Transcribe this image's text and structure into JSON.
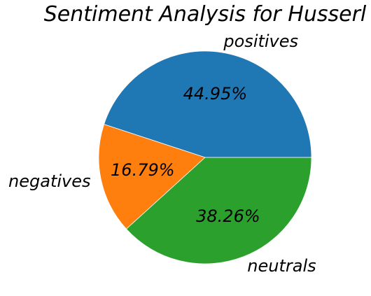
{
  "chart_data": {
    "type": "pie",
    "title": "Sentiment Analysis for Husserl",
    "categories": [
      "positives",
      "negatives",
      "neutrals"
    ],
    "values": [
      44.95,
      16.79,
      38.26
    ],
    "value_labels": [
      "44.95%",
      "16.79%",
      "38.26%"
    ],
    "colors": [
      "#1f77b4",
      "#ff7f0e",
      "#2ca02c"
    ],
    "start_angle_deg": 0,
    "direction": "counterclockwise",
    "legend": "none"
  }
}
